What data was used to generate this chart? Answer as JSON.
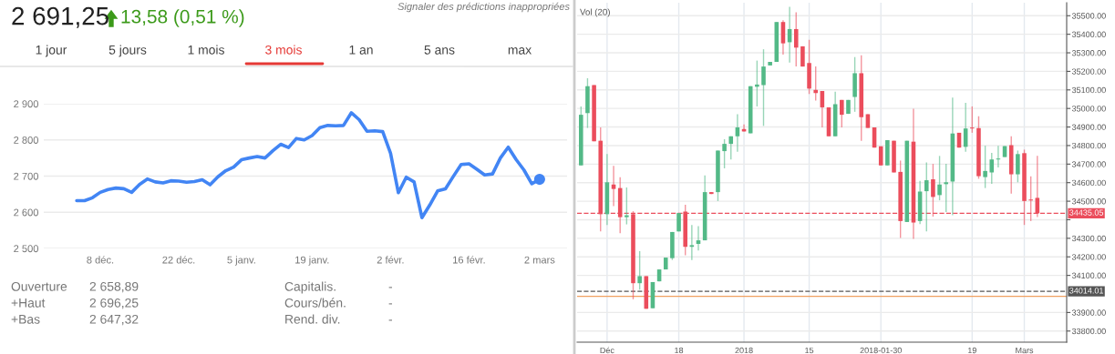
{
  "chart_data": [
    {
      "type": "line",
      "title": "2 691,25",
      "categories": [
        null,
        null,
        null,
        "8 déc.",
        null,
        null,
        null,
        null,
        null,
        null,
        null,
        null,
        null,
        "22 déc.",
        null,
        null,
        null,
        null,
        null,
        null,
        null,
        "5 janv.",
        null,
        null,
        null,
        null,
        null,
        null,
        null,
        null,
        "19 janv.",
        null,
        null,
        null,
        null,
        null,
        null,
        null,
        null,
        null,
        "2 févr.",
        null,
        null,
        null,
        null,
        null,
        null,
        null,
        null,
        null,
        "16 févr.",
        null,
        null,
        null,
        null,
        null,
        null,
        null,
        null,
        "2 mars"
      ],
      "series": [
        {
          "type": "line",
          "color": "#4285f4",
          "values": [
            2632,
            2632,
            2640,
            2655,
            2663,
            2667,
            2665,
            2655,
            2677,
            2692,
            2684,
            2681,
            2687,
            2686,
            2683,
            2685,
            2690,
            2676,
            2698,
            2715,
            2725,
            2745,
            2750,
            2754,
            2750,
            2770,
            2788,
            2779,
            2804,
            2800,
            2812,
            2834,
            2840,
            2839,
            2840,
            2875,
            2856,
            2824,
            2825,
            2823,
            2763,
            2654,
            2697,
            2684,
            2585,
            2620,
            2659,
            2665,
            2699,
            2732,
            2734,
            2719,
            2703,
            2706,
            2750,
            2780,
            2746,
            2717,
            2679,
            2691
          ]
        },
        {
          "type": "scatter",
          "color": "#4285f4",
          "marker": "circle",
          "values": [
            null,
            null,
            null,
            null,
            null,
            null,
            null,
            null,
            null,
            null,
            null,
            null,
            null,
            null,
            null,
            null,
            null,
            null,
            null,
            null,
            null,
            null,
            null,
            null,
            null,
            null,
            null,
            null,
            null,
            null,
            null,
            null,
            null,
            null,
            null,
            null,
            null,
            null,
            null,
            null,
            null,
            null,
            null,
            null,
            null,
            null,
            null,
            null,
            null,
            null,
            null,
            null,
            null,
            null,
            null,
            null,
            null,
            null,
            null,
            2691
          ]
        }
      ],
      "ylim": [
        2500,
        2900
      ],
      "yticks": [
        {
          "value": 2500,
          "label": "2 500"
        },
        {
          "value": 2600,
          "label": "2 600"
        },
        {
          "value": 2700,
          "label": "2 700"
        },
        {
          "value": 2800,
          "label": "2 800"
        },
        {
          "value": 2900,
          "label": "2 900"
        }
      ],
      "grid": "y",
      "annotations": [
        "13,58 (0,51 %)",
        "Signaler des prédictions inappropriées",
        "1 jour",
        "5 jours",
        "1 mois",
        "3 mois",
        "1 an",
        "5 ans",
        "max",
        "Ouverture",
        "2 658,89",
        "+Haut",
        "2 696,25",
        "+Bas",
        "2 647,32",
        "Capitalis.",
        "-",
        "Cours/bén.",
        "-",
        "Rend. div.",
        "-"
      ]
    },
    {
      "type": "candlestick",
      "categories": [
        null,
        null,
        null,
        null,
        "Déc",
        null,
        null,
        null,
        null,
        null,
        null,
        null,
        null,
        null,
        null,
        "18",
        null,
        null,
        null,
        null,
        null,
        null,
        null,
        null,
        null,
        "2018",
        null,
        null,
        null,
        null,
        null,
        null,
        null,
        null,
        null,
        "15",
        null,
        null,
        null,
        null,
        null,
        null,
        null,
        null,
        null,
        null,
        "2018-01-30",
        null,
        null,
        null,
        null,
        null,
        null,
        null,
        null,
        null,
        null,
        null,
        null,
        null,
        "19",
        null,
        null,
        null,
        null,
        null,
        null,
        null,
        "Mars",
        null,
        null
      ],
      "ohlc": [
        [
          34693,
          35011,
          34693,
          34966
        ],
        [
          34975,
          35163,
          34895,
          35120
        ],
        [
          35126,
          35126,
          34823,
          34823
        ],
        [
          34826,
          34898,
          34337,
          34430
        ],
        [
          34430,
          34754,
          34372,
          34602
        ],
        [
          34590,
          34690,
          34473,
          34566
        ],
        [
          34571,
          34629,
          34327,
          34414
        ],
        [
          34414,
          34574,
          34375,
          34424
        ],
        [
          34430,
          34446,
          33971,
          34058
        ],
        [
          34058,
          34231,
          34023,
          34096
        ],
        [
          34096,
          34096,
          33920,
          33920
        ],
        [
          33923,
          34064,
          33923,
          34064
        ],
        [
          34068,
          34132,
          34068,
          34132
        ],
        [
          34132,
          34196,
          34132,
          34196
        ],
        [
          34193,
          34334,
          34183,
          34334
        ],
        [
          34337,
          34436,
          34337,
          34436
        ],
        [
          34444,
          34481,
          34209,
          34254
        ],
        [
          34254,
          34372,
          34183,
          34263
        ],
        [
          34270,
          34366,
          34234,
          34289
        ],
        [
          34289,
          34639,
          34289,
          34549
        ],
        [
          34549,
          34549,
          34539,
          34539
        ],
        [
          34549,
          34773,
          34501,
          34773
        ],
        [
          34770,
          34834,
          34677,
          34809
        ],
        [
          34809,
          34850,
          34725,
          34850
        ],
        [
          34850,
          34969,
          34767,
          34898
        ],
        [
          34889,
          34914,
          34876,
          34876
        ],
        [
          34866,
          35120,
          34866,
          35120
        ],
        [
          35117,
          35258,
          35011,
          35129
        ],
        [
          35126,
          35319,
          34906,
          35226
        ],
        [
          35232,
          35251,
          35232,
          35251
        ],
        [
          35251,
          35466,
          35251,
          35466
        ],
        [
          35466,
          35476,
          35290,
          35351
        ],
        [
          35357,
          35548,
          35248,
          35428
        ],
        [
          35428,
          35518,
          35226,
          35328
        ],
        [
          35335,
          35335,
          35226,
          35226
        ],
        [
          35245,
          35370,
          35078,
          35107
        ],
        [
          35100,
          35226,
          35043,
          35083
        ],
        [
          35094,
          35094,
          34898,
          35006
        ],
        [
          35006,
          35006,
          34850,
          34850
        ],
        [
          34850,
          35091,
          34850,
          35023
        ],
        [
          35046,
          35046,
          34898,
          34966
        ],
        [
          34971,
          35046,
          34971,
          35046
        ],
        [
          35062,
          35277,
          34982,
          35190
        ],
        [
          35190,
          35287,
          34826,
          34953
        ],
        [
          34969,
          34969,
          34895,
          34895
        ],
        [
          34898,
          34898,
          34789,
          34789
        ],
        [
          34796,
          34796,
          34693,
          34693
        ],
        [
          34693,
          34829,
          34693,
          34829
        ],
        [
          34826,
          34826,
          34655,
          34655
        ],
        [
          34658,
          34719,
          34302,
          34393
        ],
        [
          34388,
          34826,
          34388,
          34826
        ],
        [
          34821,
          34998,
          34297,
          34385
        ],
        [
          34393,
          34610,
          34377,
          34552
        ],
        [
          34554,
          34709,
          34337,
          34613
        ],
        [
          34618,
          34701,
          34417,
          34523
        ],
        [
          34533,
          34744,
          34505,
          34590
        ],
        [
          34592,
          34701,
          34441,
          34602
        ],
        [
          34606,
          35059,
          34424,
          34865
        ],
        [
          34869,
          34869,
          34789,
          34789
        ],
        [
          34793,
          35030,
          34767,
          34892
        ],
        [
          34897,
          35011,
          34869,
          34892
        ],
        [
          34894,
          34958,
          34621,
          34635
        ],
        [
          34630,
          34799,
          34571,
          34663
        ],
        [
          34655,
          34760,
          34594,
          34725
        ],
        [
          34725,
          34799,
          34682,
          34730
        ],
        [
          34738,
          34797,
          34738,
          34797
        ],
        [
          34802,
          34850,
          34541,
          34645
        ],
        [
          34645,
          34773,
          34602,
          34754
        ],
        [
          34759,
          34778,
          34372,
          34501
        ],
        [
          34509,
          34634,
          34393,
          34504
        ],
        [
          34518,
          34744,
          34414,
          34435
        ]
      ],
      "ylim": [
        33740,
        35570
      ],
      "yticks": [
        {
          "value": 33800,
          "label": "33800.00"
        },
        {
          "value": 33900,
          "label": "33900.00"
        },
        {
          "value": 34100,
          "label": "34100.00"
        },
        {
          "value": 34200,
          "label": "34200.00"
        },
        {
          "value": 34300,
          "label": "34300.00"
        },
        {
          "value": 34400,
          "label": null
        },
        {
          "value": 34500,
          "label": "34500.00"
        },
        {
          "value": 34600,
          "label": "34600.00"
        },
        {
          "value": 34700,
          "label": "34700.00"
        },
        {
          "value": 34800,
          "label": "34800.00"
        },
        {
          "value": 34900,
          "label": "34900.00"
        },
        {
          "value": 35000,
          "label": "35000.00"
        },
        {
          "value": 35100,
          "label": "35100.00"
        },
        {
          "value": 35200,
          "label": "35200.00"
        },
        {
          "value": 35300,
          "label": "35300.00"
        },
        {
          "value": 35400,
          "label": "35400.00"
        },
        {
          "value": 35500,
          "label": "35500.00"
        }
      ],
      "grid": true,
      "ref_lines": [
        {
          "axis": "y",
          "value": 34435.05,
          "label": "34435.05",
          "color": "#eb4d5c",
          "line_style": "dashed"
        },
        {
          "axis": "y",
          "value": 34014.01,
          "label": "34014.01",
          "color": "#555555",
          "line_style": "dashed"
        },
        {
          "axis": "y",
          "value": 33987,
          "color": "#f0a060",
          "line_style": "solid"
        }
      ],
      "annotations": [
        "Vol (20)"
      ]
    }
  ]
}
